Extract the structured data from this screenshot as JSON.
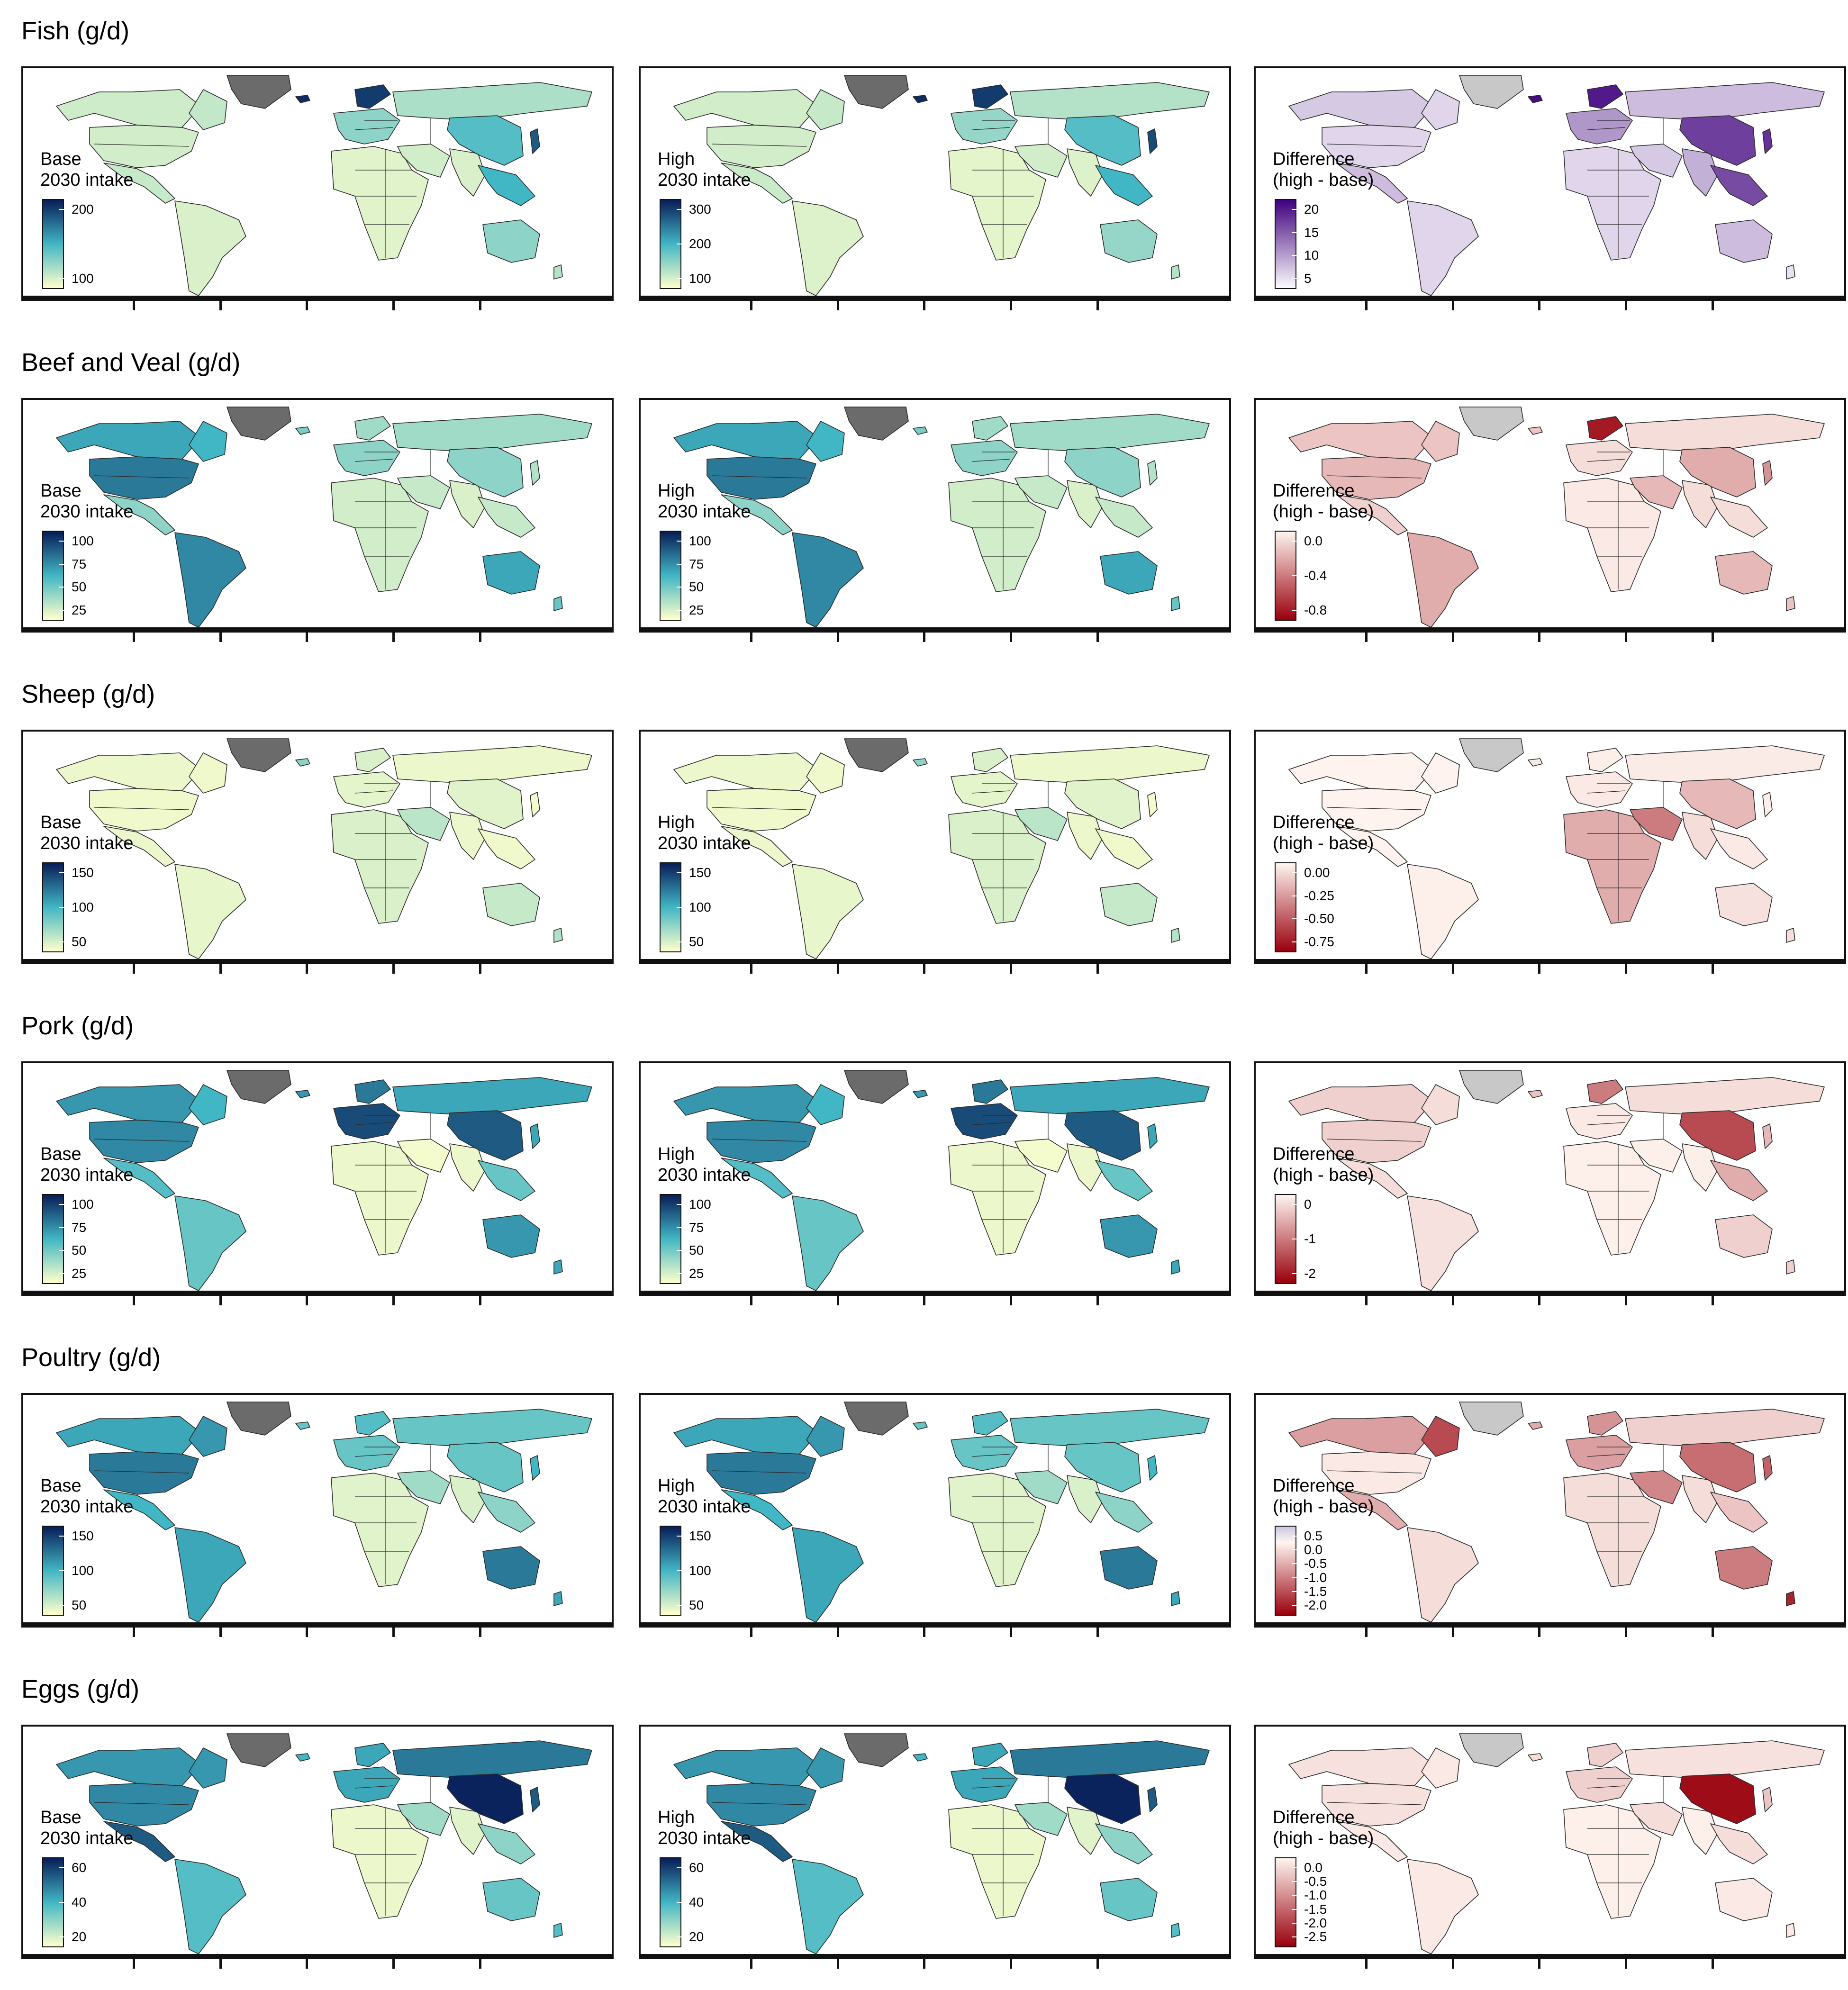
{
  "colors": {
    "seq_low": "#ffffcc",
    "seq_mid": "#41b6c4",
    "seq_high": "#081d58",
    "purple_low": "#fcfbfd",
    "purple_high": "#3f007d",
    "red_low": "#fff5f0",
    "red_high": "#99000d",
    "diff_pos": "#cbc9e2",
    "greenland": "#6b6b6b",
    "greenland_diff": "#c8c8c8",
    "no_data": "#8a8a8a"
  },
  "rows": [
    {
      "title": "Fish (g/d)",
      "panels": [
        {
          "legend": {
            "line1": "Base",
            "line2": "2030 intake",
            "scale": "sequential",
            "ticks": [
              "200",
              "100"
            ]
          }
        },
        {
          "legend": {
            "line1": "High",
            "line2": "2030 intake",
            "scale": "sequential",
            "ticks": [
              "300",
              "200",
              "100"
            ]
          }
        },
        {
          "legend": {
            "line1": "Difference",
            "line2": "(high - base)",
            "scale": "purples",
            "ticks": [
              "20",
              "15",
              "10",
              "5"
            ]
          }
        }
      ]
    },
    {
      "title": "Beef and Veal (g/d)",
      "panels": [
        {
          "legend": {
            "line1": "Base",
            "line2": "2030 intake",
            "scale": "sequential",
            "ticks": [
              "100",
              "75",
              "50",
              "25"
            ]
          }
        },
        {
          "legend": {
            "line1": "High",
            "line2": "2030 intake",
            "scale": "sequential",
            "ticks": [
              "100",
              "75",
              "50",
              "25"
            ]
          }
        },
        {
          "legend": {
            "line1": "Difference",
            "line2": "(high - base)",
            "scale": "reds",
            "ticks": [
              "0.0",
              "-0.4",
              "-0.8"
            ]
          }
        }
      ]
    },
    {
      "title": "Sheep (g/d)",
      "panels": [
        {
          "legend": {
            "line1": "Base",
            "line2": "2030 intake",
            "scale": "sequential",
            "ticks": [
              "150",
              "100",
              "50"
            ]
          }
        },
        {
          "legend": {
            "line1": "High",
            "line2": "2030 intake",
            "scale": "sequential",
            "ticks": [
              "150",
              "100",
              "50"
            ]
          }
        },
        {
          "legend": {
            "line1": "Difference",
            "line2": "(high - base)",
            "scale": "reds",
            "ticks": [
              "0.00",
              "-0.25",
              "-0.50",
              "-0.75"
            ]
          }
        }
      ]
    },
    {
      "title": "Pork (g/d)",
      "panels": [
        {
          "legend": {
            "line1": "Base",
            "line2": "2030 intake",
            "scale": "sequential",
            "ticks": [
              "100",
              "75",
              "50",
              "25"
            ]
          }
        },
        {
          "legend": {
            "line1": "High",
            "line2": "2030 intake",
            "scale": "sequential",
            "ticks": [
              "100",
              "75",
              "50",
              "25"
            ]
          }
        },
        {
          "legend": {
            "line1": "Difference",
            "line2": "(high - base)",
            "scale": "reds",
            "ticks": [
              "0",
              "-1",
              "-2"
            ]
          }
        }
      ]
    },
    {
      "title": "Poultry (g/d)",
      "panels": [
        {
          "legend": {
            "line1": "Base",
            "line2": "2030 intake",
            "scale": "sequential",
            "ticks": [
              "150",
              "100",
              "50"
            ]
          }
        },
        {
          "legend": {
            "line1": "High",
            "line2": "2030 intake",
            "scale": "sequential",
            "ticks": [
              "150",
              "100",
              "50"
            ]
          }
        },
        {
          "legend": {
            "line1": "Difference",
            "line2": "(high - base)",
            "scale": "diverging",
            "ticks": [
              "0.5",
              "0.0",
              "-0.5",
              "-1.0",
              "-1.5",
              "-2.0"
            ]
          }
        }
      ]
    },
    {
      "title": "Eggs (g/d)",
      "panels": [
        {
          "legend": {
            "line1": "Base",
            "line2": "2030 intake",
            "scale": "sequential",
            "ticks": [
              "60",
              "40",
              "20"
            ]
          }
        },
        {
          "legend": {
            "line1": "High",
            "line2": "2030 intake",
            "scale": "sequential",
            "ticks": [
              "60",
              "40",
              "20"
            ]
          }
        },
        {
          "legend": {
            "line1": "Difference",
            "line2": "(high - base)",
            "scale": "reds",
            "ticks": [
              "0.0",
              "-0.5",
              "-1.0",
              "-1.5",
              "-2.0",
              "-2.5"
            ]
          }
        }
      ]
    }
  ],
  "maps": [
    [
      {
        "na": 0.13,
        "ca": 0.16,
        "us": 0.12,
        "mx": 0.15,
        "sa": 0.1,
        "eu": 0.3,
        "ru": 0.22,
        "af": 0.08,
        "me": 0.12,
        "ia": 0.1,
        "cn": 0.45,
        "se": 0.5,
        "jp": 0.8,
        "au": 0.3,
        "nz": 0.2,
        "no": 0.9,
        "ic": 0.95
      },
      {
        "na": 0.12,
        "ca": 0.15,
        "us": 0.12,
        "mx": 0.14,
        "sa": 0.09,
        "eu": 0.28,
        "ru": 0.2,
        "af": 0.07,
        "me": 0.12,
        "ia": 0.09,
        "cn": 0.45,
        "se": 0.5,
        "jp": 0.85,
        "au": 0.28,
        "nz": 0.2,
        "no": 0.9,
        "ic": 0.95
      },
      {
        "na": 0.2,
        "ca": 0.15,
        "us": 0.15,
        "mx": 0.25,
        "sa": 0.15,
        "eu": 0.4,
        "ru": 0.25,
        "af": 0.15,
        "me": 0.2,
        "ia": 0.3,
        "cn": 0.75,
        "se": 0.7,
        "jp": 0.8,
        "au": 0.25,
        "nz": 0.1,
        "no": 0.9,
        "ic": 0.95
      }
    ],
    [
      {
        "na": 0.55,
        "ca": 0.5,
        "us": 0.7,
        "mx": 0.3,
        "sa": 0.65,
        "eu": 0.3,
        "ru": 0.25,
        "af": 0.12,
        "me": 0.15,
        "ia": 0.1,
        "cn": 0.3,
        "se": 0.15,
        "jp": 0.2,
        "au": 0.55,
        "nz": 0.4,
        "no": 0.25,
        "ic": 0.35
      },
      {
        "na": 0.55,
        "ca": 0.5,
        "us": 0.7,
        "mx": 0.3,
        "sa": 0.65,
        "eu": 0.3,
        "ru": 0.25,
        "af": 0.12,
        "me": 0.15,
        "ia": 0.1,
        "cn": 0.3,
        "se": 0.15,
        "jp": 0.2,
        "au": 0.55,
        "nz": 0.4,
        "no": 0.25,
        "ic": 0.35
      },
      {
        "na": 0.2,
        "ca": 0.2,
        "us": 0.25,
        "mx": 0.15,
        "sa": 0.3,
        "eu": 0.1,
        "ru": 0.1,
        "af": 0.05,
        "me": 0.25,
        "ia": 0.1,
        "cn": 0.3,
        "se": 0.1,
        "jp": 0.4,
        "au": 0.25,
        "nz": 0.2,
        "no": 0.9,
        "ic": 0.2
      }
    ],
    [
      {
        "na": 0.05,
        "ca": 0.04,
        "us": 0.04,
        "mx": 0.05,
        "sa": 0.06,
        "eu": 0.07,
        "ru": 0.05,
        "af": 0.1,
        "me": 0.18,
        "ia": 0.05,
        "cn": 0.08,
        "se": 0.04,
        "jp": 0.03,
        "au": 0.15,
        "nz": 0.2,
        "no": 0.1,
        "ic": 0.3
      },
      {
        "na": 0.05,
        "ca": 0.04,
        "us": 0.04,
        "mx": 0.05,
        "sa": 0.06,
        "eu": 0.07,
        "ru": 0.05,
        "af": 0.1,
        "me": 0.18,
        "ia": 0.05,
        "cn": 0.08,
        "se": 0.04,
        "jp": 0.03,
        "au": 0.15,
        "nz": 0.2,
        "no": 0.1,
        "ic": 0.3
      },
      {
        "na": 0.01,
        "ca": 0.01,
        "us": 0.01,
        "mx": 0.01,
        "sa": 0.02,
        "eu": 0.05,
        "ru": 0.04,
        "af": 0.3,
        "me": 0.5,
        "ia": 0.1,
        "cn": 0.25,
        "se": 0.05,
        "jp": 0.02,
        "au": 0.08,
        "nz": 0.1,
        "no": 0.03,
        "ic": 0.05
      }
    ],
    [
      {
        "na": 0.6,
        "ca": 0.5,
        "us": 0.65,
        "mx": 0.45,
        "sa": 0.4,
        "eu": 0.85,
        "ru": 0.55,
        "af": 0.05,
        "me": 0.03,
        "ia": 0.05,
        "cn": 0.8,
        "se": 0.4,
        "jp": 0.55,
        "au": 0.6,
        "nz": 0.55,
        "no": 0.7,
        "ic": 0.6
      },
      {
        "na": 0.6,
        "ca": 0.5,
        "us": 0.65,
        "mx": 0.45,
        "sa": 0.4,
        "eu": 0.85,
        "ru": 0.55,
        "af": 0.05,
        "me": 0.03,
        "ia": 0.05,
        "cn": 0.8,
        "se": 0.4,
        "jp": 0.55,
        "au": 0.6,
        "nz": 0.55,
        "no": 0.7,
        "ic": 0.6
      },
      {
        "na": 0.15,
        "ca": 0.1,
        "us": 0.15,
        "mx": 0.1,
        "sa": 0.08,
        "eu": 0.05,
        "ru": 0.1,
        "af": 0.02,
        "me": 0.02,
        "ia": 0.03,
        "cn": 0.7,
        "se": 0.3,
        "jp": 0.25,
        "au": 0.15,
        "nz": 0.15,
        "no": 0.5,
        "ic": 0.2
      }
    ],
    [
      {
        "na": 0.55,
        "ca": 0.6,
        "us": 0.7,
        "mx": 0.5,
        "sa": 0.55,
        "eu": 0.4,
        "ru": 0.4,
        "af": 0.08,
        "me": 0.25,
        "ia": 0.1,
        "cn": 0.4,
        "se": 0.3,
        "jp": 0.5,
        "au": 0.7,
        "nz": 0.55,
        "no": 0.45,
        "ic": 0.4
      },
      {
        "na": 0.55,
        "ca": 0.6,
        "us": 0.7,
        "mx": 0.5,
        "sa": 0.55,
        "eu": 0.4,
        "ru": 0.4,
        "af": 0.08,
        "me": 0.25,
        "ia": 0.1,
        "cn": 0.4,
        "se": 0.3,
        "jp": 0.5,
        "au": 0.7,
        "nz": 0.55,
        "no": 0.45,
        "ic": 0.4
      },
      {
        "na": 0.35,
        "ca": 0.7,
        "us": 0.05,
        "mx": 0.3,
        "sa": 0.1,
        "eu": 0.35,
        "ru": 0.15,
        "af": 0.1,
        "me": 0.45,
        "ia": 0.1,
        "cn": 0.55,
        "se": 0.2,
        "jp": 0.6,
        "au": 0.5,
        "nz": 0.85,
        "no": 0.4,
        "ic": 0.3
      }
    ],
    [
      {
        "na": 0.6,
        "ca": 0.6,
        "us": 0.65,
        "mx": 0.8,
        "sa": 0.45,
        "eu": 0.55,
        "ru": 0.7,
        "af": 0.05,
        "me": 0.25,
        "ia": 0.08,
        "cn": 0.98,
        "se": 0.3,
        "jp": 0.8,
        "au": 0.4,
        "nz": 0.45,
        "no": 0.55,
        "ic": 0.5
      },
      {
        "na": 0.6,
        "ca": 0.6,
        "us": 0.65,
        "mx": 0.8,
        "sa": 0.45,
        "eu": 0.55,
        "ru": 0.7,
        "af": 0.05,
        "me": 0.25,
        "ia": 0.08,
        "cn": 0.98,
        "se": 0.3,
        "jp": 0.8,
        "au": 0.4,
        "nz": 0.45,
        "no": 0.55,
        "ic": 0.5
      },
      {
        "na": 0.08,
        "ca": 0.05,
        "us": 0.08,
        "mx": 0.05,
        "sa": 0.05,
        "eu": 0.15,
        "ru": 0.08,
        "af": 0.02,
        "me": 0.1,
        "ia": 0.02,
        "cn": 0.95,
        "se": 0.1,
        "jp": 0.2,
        "au": 0.05,
        "nz": 0.05,
        "no": 0.15,
        "ic": 0.1
      }
    ]
  ]
}
